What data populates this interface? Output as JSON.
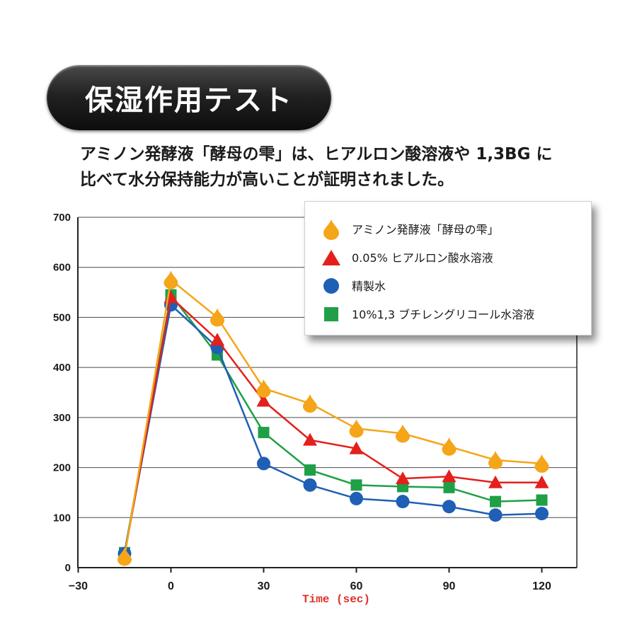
{
  "title": "保湿作用テスト",
  "description": {
    "line1": "アミノン発酵液「酵母の雫」は、ヒアルロン酸溶液や 1,3BG に",
    "line2": "比べて水分保持能力が高いことが証明されました。"
  },
  "chart_data": {
    "type": "line",
    "xlabel": "Time (sec)",
    "ylabel": "",
    "xlim": [
      -30,
      120
    ],
    "ylim": [
      0,
      700
    ],
    "x_ticks": [
      "−30",
      "0",
      "30",
      "60",
      "90",
      "120"
    ],
    "y_ticks": [
      "0",
      "100",
      "200",
      "300",
      "400",
      "500",
      "600",
      "700"
    ],
    "grid": "horizontal",
    "legend_position": "top-right",
    "x": [
      -15,
      0,
      15,
      30,
      45,
      60,
      75,
      90,
      105,
      120
    ],
    "series": [
      {
        "name": "アミノン発酵液「酵母の雫」",
        "marker": "drop",
        "color": "#f5a51a",
        "values": [
          22,
          575,
          500,
          358,
          328,
          278,
          268,
          242,
          215,
          208
        ]
      },
      {
        "name": "0.05% ヒアルロン酸水溶液",
        "marker": "triangle",
        "color": "#e3201b",
        "values": [
          25,
          540,
          455,
          333,
          255,
          238,
          178,
          182,
          170,
          170
        ]
      },
      {
        "name": "精製水",
        "marker": "circle",
        "color": "#1f5fb5",
        "values": [
          28,
          525,
          440,
          208,
          165,
          138,
          132,
          122,
          105,
          108
        ]
      },
      {
        "name": "10%1,3 ブチレングリコール水溶液",
        "marker": "square",
        "color": "#1fa046",
        "values": [
          30,
          545,
          425,
          270,
          195,
          165,
          162,
          160,
          132,
          135
        ]
      }
    ]
  }
}
